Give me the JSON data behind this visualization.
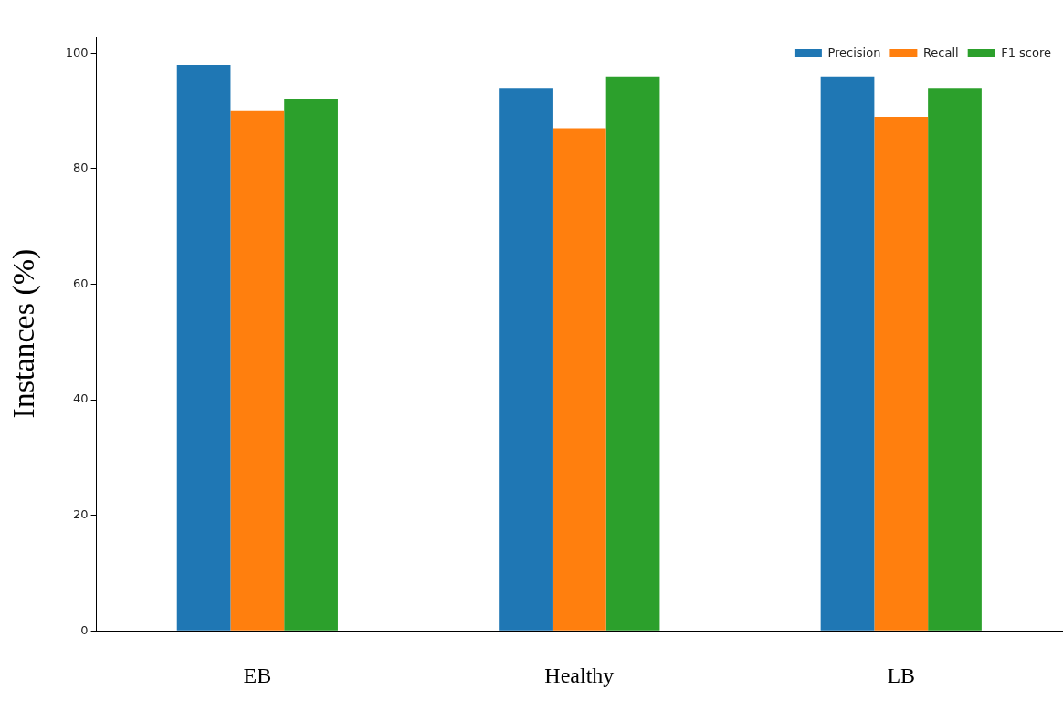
{
  "chart_data": {
    "type": "bar",
    "ylabel": "Instances (%)",
    "categories": [
      "EB",
      "Healthy",
      "LB"
    ],
    "series": [
      {
        "name": "Precision",
        "color": "#1f77b4",
        "values": [
          98,
          94,
          96
        ]
      },
      {
        "name": "Recall",
        "color": "#ff7f0e",
        "values": [
          90,
          87,
          89
        ]
      },
      {
        "name": "F1 score",
        "color": "#2ca02c",
        "values": [
          92,
          96,
          94
        ]
      }
    ],
    "ylim": [
      0,
      102.9
    ],
    "yticks": [
      0,
      20,
      40,
      60,
      80,
      100
    ],
    "grid": false,
    "legend": "top right"
  }
}
